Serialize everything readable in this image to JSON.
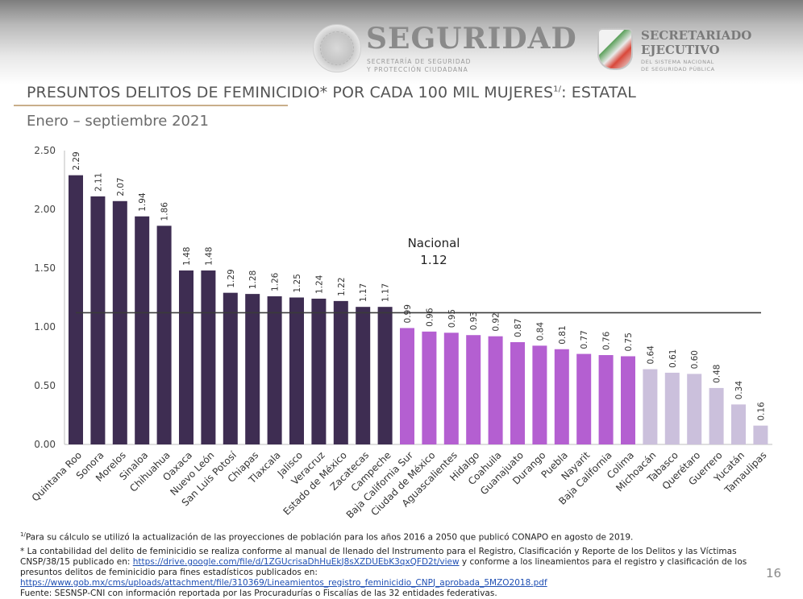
{
  "header": {
    "seguridad_title": "SEGURIDAD",
    "seguridad_sub_line1": "SECRETARÍA DE SEGURIDAD",
    "seguridad_sub_line2": "Y PROTECCIÓN CIUDADANA",
    "sesnsp_title_line1": "SECRETARIADO",
    "sesnsp_title_line2": "EJECUTIVO",
    "sesnsp_sub_line1": "DEL SISTEMA NACIONAL",
    "sesnsp_sub_line2": "DE SEGURIDAD PÚBLICA"
  },
  "page": {
    "title_main": "PRESUNTOS DELITOS DE FEMINICIDIO* POR CADA 100 MIL MUJERES",
    "title_sup": "1/",
    "title_tail": ": ESTATAL",
    "subtitle": "Enero – septiembre 2021",
    "page_number": "16"
  },
  "colors": {
    "above_national": "#3e2d52",
    "below_national_mid": "#b45fd1",
    "lowest_group": "#cbc0dc",
    "reference_line": "#3a3a3a",
    "title_rule": "#c9ae8a",
    "link": "#1f4fb3"
  },
  "chart_data": {
    "type": "bar",
    "title": "PRESUNTOS DELITOS DE FEMINICIDIO* POR CADA 100 MIL MUJERES1/: ESTATAL",
    "subtitle": "Enero – septiembre 2021",
    "xlabel": "",
    "ylabel": "",
    "ylim": [
      0,
      2.5
    ],
    "yticks": [
      "0.00",
      "0.50",
      "1.00",
      "1.50",
      "2.00",
      "2.50"
    ],
    "grid": false,
    "legend": "none",
    "categories": [
      "Quintana Roo",
      "Sonora",
      "Morelos",
      "Sinaloa",
      "Chihuahua",
      "Oaxaca",
      "Nuevo León",
      "San Luis Potosí",
      "Chiapas",
      "Tlaxcala",
      "Jalisco",
      "Veracruz",
      "Estado de México",
      "Zacatecas",
      "Campeche",
      "Baja California Sur",
      "Ciudad de México",
      "Aguascalientes",
      "Hidalgo",
      "Coahuila",
      "Guanajuato",
      "Durango",
      "Puebla",
      "Nayarit",
      "Baja California",
      "Colima",
      "Michoacán",
      "Tabasco",
      "Querétaro",
      "Guerrero",
      "Yucatán",
      "Tamaulipas"
    ],
    "values": [
      2.29,
      2.11,
      2.07,
      1.94,
      1.86,
      1.48,
      1.48,
      1.29,
      1.28,
      1.26,
      1.25,
      1.24,
      1.22,
      1.17,
      1.17,
      0.99,
      0.96,
      0.95,
      0.93,
      0.92,
      0.87,
      0.84,
      0.81,
      0.77,
      0.76,
      0.75,
      0.64,
      0.61,
      0.6,
      0.48,
      0.34,
      0.16
    ],
    "value_labels": [
      "2.29",
      "2.11",
      "2.07",
      "1.94",
      "1.86",
      "1.48",
      "1.48",
      "1.29",
      "1.28",
      "1.26",
      "1.25",
      "1.24",
      "1.22",
      "1.17",
      "1.17",
      "0.99",
      "0.96",
      "0.95",
      "0.93",
      "0.92",
      "0.87",
      "0.84",
      "0.81",
      "0.77",
      "0.76",
      "0.75",
      "0.64",
      "0.61",
      "0.60",
      "0.48",
      "0.34",
      "0.16"
    ],
    "color_groups": [
      "above_national",
      "above_national",
      "above_national",
      "above_national",
      "above_national",
      "above_national",
      "above_national",
      "above_national",
      "above_national",
      "above_national",
      "above_national",
      "above_national",
      "above_national",
      "above_national",
      "above_national",
      "below_national_mid",
      "below_national_mid",
      "below_national_mid",
      "below_national_mid",
      "below_national_mid",
      "below_national_mid",
      "below_national_mid",
      "below_national_mid",
      "below_national_mid",
      "below_national_mid",
      "below_national_mid",
      "lowest_group",
      "lowest_group",
      "lowest_group",
      "lowest_group",
      "lowest_group",
      "lowest_group"
    ],
    "reference_line": {
      "label": "Nacional",
      "value": 1.12,
      "value_label": "1.12"
    }
  },
  "notes": {
    "note1_sup": "1/",
    "note1": "Para su cálculo se utilizó la actualización de las proyecciones de población para los años 2016 a 2050 que publicó CONAPO en agosto de 2019.",
    "note2_a": "* La contabilidad del delito de feminicidio se realiza conforme al manual de llenado del Instrumento para el Registro, Clasificación y Reporte de los Delitos y las Víctimas CNSP/38/15 publicado en: ",
    "note2_link1": "https://drive.google.com/file/d/1ZGUcrisaDhHuEkJ8sXZDUEbK3qxQFD2t/view",
    "note2_b": " y conforme a los lineamientos para el registro y clasificación de los presuntos delitos de feminicidio para fines estadísticos publicados en:",
    "note2_link2": "https://www.gob.mx/cms/uploads/attachment/file/310369/Lineamientos_registro_feminicidio_CNPJ_aprobada_5MZO2018.pdf",
    "source": "Fuente: SESNSP-CNI con información reportada por las Procuradurías o Fiscalías de las 32 entidades federativas."
  }
}
